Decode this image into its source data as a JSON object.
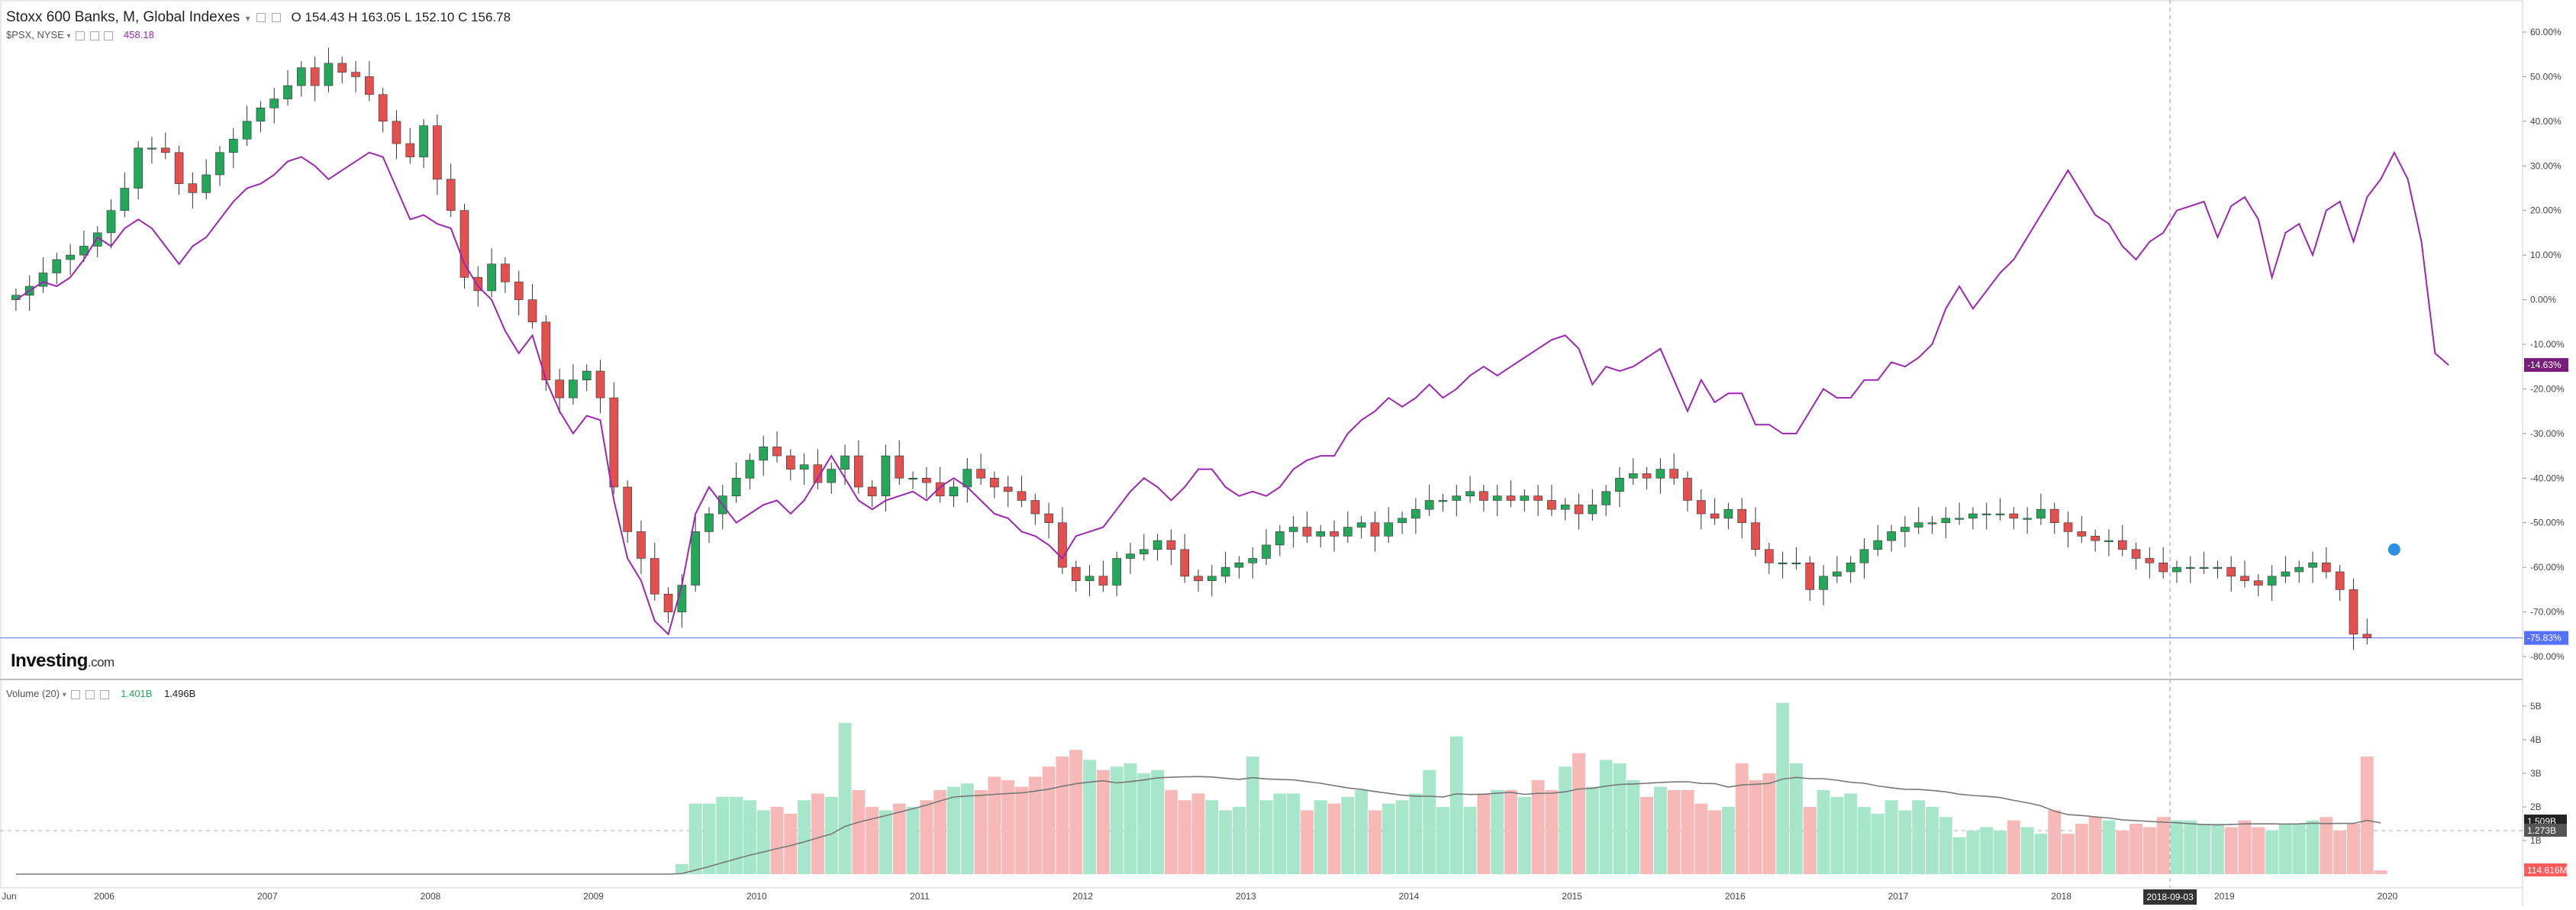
{
  "header": {
    "title": "Stoxx 600 Banks, M, Global Indexes",
    "ohlc": "O 154.43  H 163.05  L 152.10  C 156.78",
    "compare_symbol": "$PSX, NYSE",
    "compare_value": "458.18"
  },
  "volume_header": {
    "label": "Volume (20)",
    "value1": "1.401B",
    "value2": "1.496B"
  },
  "logo": {
    "main": "Investing",
    "suffix": ".com"
  },
  "colors": {
    "up": "#26a65b",
    "down": "#e0514f",
    "compare_line": "#9c27b0",
    "vol_up": "#a8e6cc",
    "vol_down": "#f7b8b8",
    "last_badge": "#5472ff",
    "compare_badge": "#7a1c7a"
  },
  "chart_data": [
    {
      "type": "candlestick",
      "title": "Stoxx 600 Banks, M, Global Indexes",
      "y_axis": {
        "unit": "percent",
        "ticks": [
          "60.00%",
          "50.00%",
          "40.00%",
          "30.00%",
          "20.00%",
          "10.00%",
          "0.00%",
          "-10.00%",
          "-20.00%",
          "-30.00%",
          "-40.00%",
          "-50.00%",
          "-60.00%",
          "-70.00%",
          "-80.00%"
        ],
        "tick_values": [
          60,
          50,
          40,
          30,
          20,
          10,
          0,
          -10,
          -20,
          -30,
          -40,
          -50,
          -60,
          -70,
          -80
        ],
        "range": [
          -85,
          65
        ]
      },
      "x_axis": {
        "labels": [
          "Jun",
          "2006",
          "2007",
          "2008",
          "2009",
          "2010",
          "2011",
          "2012",
          "2013",
          "2014",
          "2015",
          "2016",
          "2017",
          "2018",
          "2019",
          "2020"
        ],
        "label_months": [
          0,
          7,
          19,
          31,
          43,
          55,
          67,
          79,
          91,
          103,
          115,
          127,
          139,
          151,
          163,
          175
        ],
        "start": "2005-06",
        "end": "2020-05",
        "crosshair_label": "2018-09-03",
        "crosshair_month": 159
      },
      "series_candles_close": [
        1,
        3,
        6,
        9,
        10,
        12,
        15,
        20,
        25,
        34,
        34,
        33,
        26,
        24,
        28,
        33,
        36,
        40,
        43,
        45,
        48,
        52,
        48,
        53,
        51,
        50,
        46,
        40,
        35,
        32,
        39,
        27,
        20,
        5,
        2,
        8,
        4,
        0,
        -5,
        -18,
        -22,
        -18,
        -16,
        -22,
        -42,
        -52,
        -58,
        -66,
        -70,
        -64,
        -52,
        -48,
        -44,
        -40,
        -36,
        -33,
        -35,
        -38,
        -37,
        -41,
        -38,
        -35,
        -42,
        -44,
        -35,
        -40,
        -40,
        -41,
        -44,
        -42,
        -38,
        -40,
        -42,
        -43,
        -45,
        -48,
        -50,
        -60,
        -63,
        -62,
        -64,
        -58,
        -57,
        -56,
        -54,
        -56,
        -62,
        -63,
        -62,
        -60,
        -59,
        -58,
        -55,
        -52,
        -51,
        -53,
        -52,
        -53,
        -51,
        -50,
        -53,
        -50,
        -49,
        -47,
        -45,
        -45,
        -44,
        -43,
        -45,
        -44,
        -45,
        -44,
        -45,
        -47,
        -46,
        -48,
        -46,
        -43,
        -40,
        -39,
        -40,
        -38,
        -40,
        -45,
        -48,
        -49,
        -47,
        -50,
        -56,
        -59,
        -59,
        -59,
        -65,
        -62,
        -61,
        -59,
        -56,
        -54,
        -52,
        -51,
        -50,
        -50,
        -49,
        -49,
        -48,
        -48,
        -48,
        -49,
        -49,
        -47,
        -50,
        -52,
        -53,
        -54,
        -54,
        -56,
        -58,
        -59,
        -61,
        -60,
        -60,
        -60,
        -60,
        -62,
        -63,
        -64,
        -62,
        -61,
        -60,
        -59,
        -61,
        -65,
        -75,
        -75.8
      ],
      "compare_series": {
        "name": "$PSX, NYSE",
        "values_pct": [
          0,
          2,
          4,
          3,
          5,
          9,
          14,
          12,
          16,
          18,
          16,
          12,
          8,
          12,
          14,
          18,
          22,
          25,
          26,
          28,
          31,
          32,
          30,
          27,
          29,
          31,
          33,
          32,
          25,
          18,
          19,
          17,
          16,
          8,
          3,
          0,
          -7,
          -12,
          -8,
          -18,
          -25,
          -30,
          -26,
          -27,
          -45,
          -58,
          -63,
          -72,
          -75,
          -64,
          -48,
          -42,
          -46,
          -50,
          -48,
          -46,
          -45,
          -48,
          -45,
          -40,
          -35,
          -40,
          -45,
          -47,
          -45,
          -44,
          -43,
          -45,
          -42,
          -40,
          -42,
          -45,
          -48,
          -49,
          -52,
          -53,
          -55,
          -58,
          -53,
          -52,
          -51,
          -47,
          -43,
          -40,
          -42,
          -45,
          -42,
          -38,
          -38,
          -42,
          -44,
          -43,
          -44,
          -42,
          -38,
          -36,
          -35,
          -35,
          -30,
          -27,
          -25,
          -22,
          -24,
          -22,
          -19,
          -22,
          -20,
          -17,
          -15,
          -17,
          -15,
          -13,
          -11,
          -9,
          -8,
          -11,
          -19,
          -15,
          -16,
          -15,
          -13,
          -11,
          -18,
          -25,
          -18,
          -23,
          -21,
          -21,
          -28,
          -28,
          -30,
          -30,
          -25,
          -20,
          -22,
          -22,
          -18,
          -18,
          -14,
          -15,
          -13,
          -10,
          -2,
          3,
          -2,
          2,
          6,
          9,
          14,
          19,
          24,
          29,
          24,
          19,
          17,
          12,
          9,
          13,
          15,
          20,
          21,
          22,
          14,
          21,
          23,
          18,
          5,
          15,
          17,
          10,
          20,
          22,
          13,
          23,
          27,
          33,
          27,
          13,
          -12,
          -14.63
        ],
        "last_label": "-14.63%"
      },
      "last_close_label": "-75.83%"
    },
    {
      "type": "bar",
      "title": "Volume (20)",
      "y_axis": {
        "ticks": [
          "5B",
          "4B",
          "3B",
          "2B",
          "1B"
        ],
        "tick_values": [
          5,
          4,
          3,
          2,
          1
        ],
        "range": [
          0,
          5.5
        ]
      },
      "current_labels": [
        "1.509B",
        "1.273B",
        "114.616M"
      ],
      "volume_billions": [
        0,
        0,
        0,
        0,
        0,
        0,
        0,
        0,
        0,
        0,
        0,
        0,
        0,
        0,
        0,
        0,
        0,
        0,
        0,
        0,
        0,
        0,
        0,
        0,
        0,
        0,
        0,
        0,
        0,
        0,
        0,
        0,
        0,
        0,
        0,
        0,
        0,
        0,
        0,
        0,
        0,
        0,
        0,
        0,
        0,
        0,
        0,
        0,
        0,
        0.3,
        2.1,
        2.1,
        2.3,
        2.3,
        2.2,
        1.9,
        2.0,
        1.8,
        2.2,
        2.4,
        2.3,
        4.5,
        2.5,
        2.0,
        1.9,
        2.1,
        2.0,
        2.2,
        2.5,
        2.6,
        2.7,
        2.5,
        2.9,
        2.8,
        2.6,
        2.9,
        3.2,
        3.5,
        3.7,
        3.4,
        3.1,
        3.2,
        3.3,
        3.0,
        3.1,
        2.5,
        2.2,
        2.4,
        2.2,
        1.9,
        2.0,
        3.5,
        2.2,
        2.4,
        2.4,
        1.9,
        2.2,
        2.1,
        2.3,
        2.5,
        1.9,
        2.1,
        2.2,
        2.4,
        3.1,
        2.0,
        4.1,
        2.0,
        2.4,
        2.5,
        2.5,
        2.3,
        2.8,
        2.5,
        3.2,
        3.6,
        2.6,
        3.4,
        3.3,
        2.8,
        2.3,
        2.6,
        2.5,
        2.5,
        2.1,
        1.9,
        2.0,
        3.3,
        2.8,
        3.0,
        5.1,
        3.3,
        2.0,
        2.5,
        2.3,
        2.4,
        2.0,
        1.8,
        2.2,
        1.9,
        2.2,
        2.0,
        1.7,
        1.1,
        1.3,
        1.4,
        1.3,
        1.6,
        1.4,
        1.2,
        1.9,
        1.2,
        1.5,
        1.7,
        1.6,
        1.3,
        1.5,
        1.4,
        1.7,
        1.6,
        1.6,
        1.5,
        1.5,
        1.4,
        1.6,
        1.4,
        1.3,
        1.5,
        1.5,
        1.6,
        1.7,
        1.3,
        1.5,
        3.5,
        0.11
      ]
    }
  ]
}
